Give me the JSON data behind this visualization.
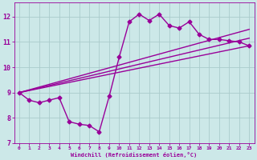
{
  "xlabel": "Windchill (Refroidissement éolien,°C)",
  "bg_color": "#cce8e8",
  "grid_color": "#aacccc",
  "line_color": "#990099",
  "xlim": [
    -0.5,
    23.5
  ],
  "ylim": [
    7.0,
    12.55
  ],
  "yticks": [
    7,
    8,
    9,
    10,
    11,
    12
  ],
  "xticks": [
    0,
    1,
    2,
    3,
    4,
    5,
    6,
    7,
    8,
    9,
    10,
    11,
    12,
    13,
    14,
    15,
    16,
    17,
    18,
    19,
    20,
    21,
    22,
    23
  ],
  "main_series": {
    "x": [
      0,
      1,
      2,
      3,
      4,
      5,
      6,
      7,
      8,
      9,
      10,
      11,
      12,
      13,
      14,
      15,
      16,
      17,
      18,
      19,
      20,
      21,
      22,
      23
    ],
    "y": [
      9.0,
      8.7,
      8.6,
      8.7,
      8.8,
      7.85,
      7.75,
      7.7,
      7.45,
      8.85,
      10.4,
      11.8,
      12.1,
      11.85,
      12.1,
      11.65,
      11.55,
      11.8,
      11.3,
      11.1,
      11.1,
      11.05,
      11.0,
      10.85
    ]
  },
  "trend_lines": [
    {
      "x": [
        0,
        23
      ],
      "y": [
        9.0,
        10.85
      ]
    },
    {
      "x": [
        0,
        23
      ],
      "y": [
        9.0,
        11.15
      ]
    },
    {
      "x": [
        0,
        23
      ],
      "y": [
        9.0,
        11.5
      ]
    }
  ],
  "marker": "D",
  "markersize": 2.5,
  "linewidth": 1.0
}
